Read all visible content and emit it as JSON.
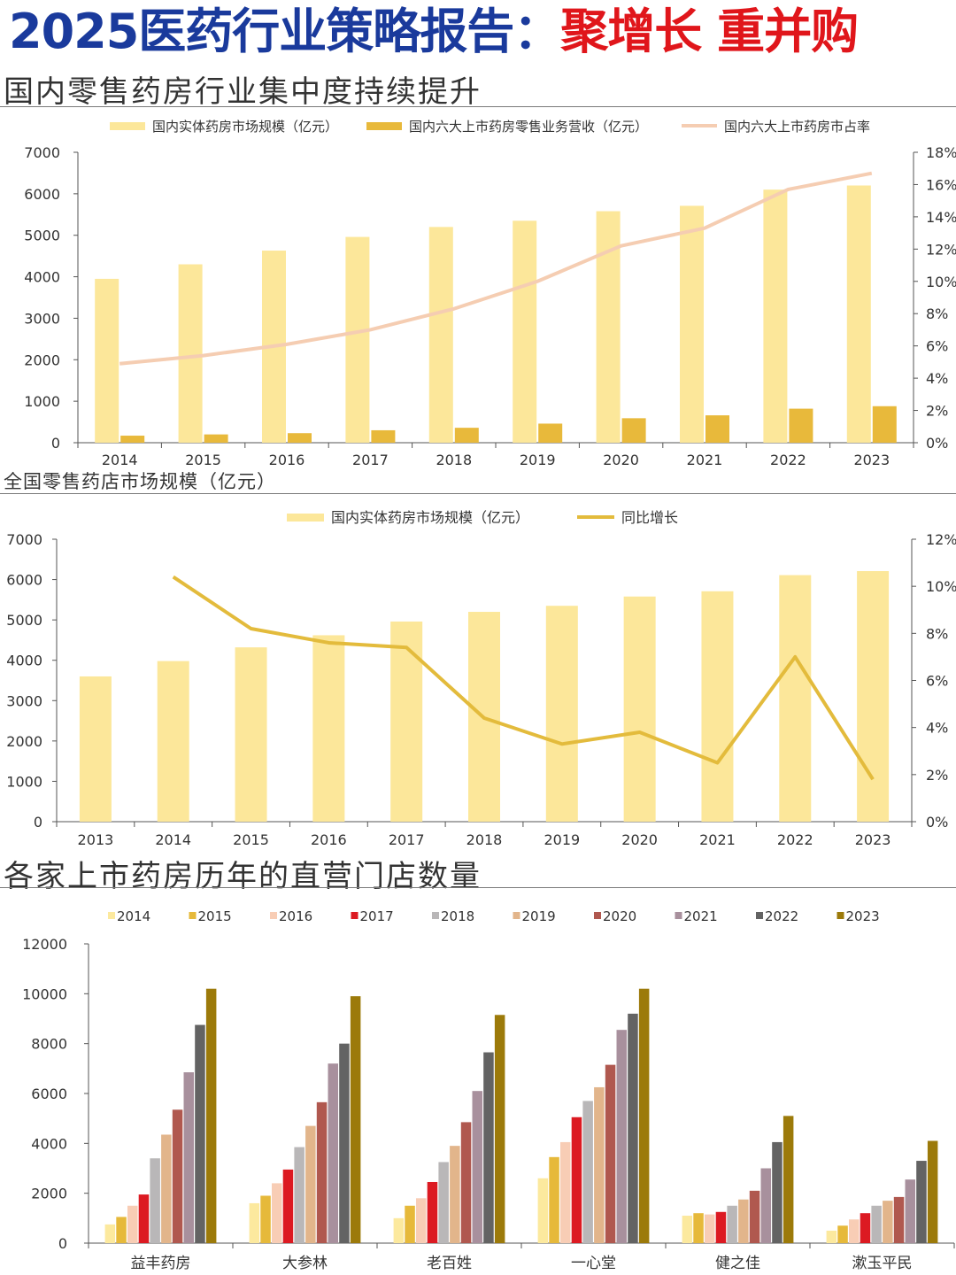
{
  "header": {
    "title_main": "2025医药行业策略报告：",
    "title_accent": "聚增长 重并购"
  },
  "sections": [
    {
      "heading": "国内零售药房行业集中度持续提升"
    },
    {
      "heading": "全国零售药店市场规模（亿元）"
    },
    {
      "heading": "各家上市药房历年的直营门店数量"
    }
  ],
  "colors": {
    "light_yellow": "#fce79a",
    "gold": "#e8b93b",
    "peach": "#f5cdb2",
    "line_gold": "#e3bb3c",
    "title_blue": "#1a3a9c",
    "title_red": "#e0161b"
  },
  "chart_data": [
    {
      "type": "bar",
      "categories": [
        "2014",
        "2015",
        "2016",
        "2017",
        "2018",
        "2019",
        "2020",
        "2021",
        "2022",
        "2023"
      ],
      "series": [
        {
          "name": "国内实体药房市场规模（亿元）",
          "kind": "bar",
          "axis": "left",
          "values": [
            3950,
            4300,
            4630,
            4960,
            5200,
            5350,
            5580,
            5710,
            6100,
            6200
          ]
        },
        {
          "name": "国内六大上市药房零售业务营收（亿元）",
          "kind": "bar",
          "axis": "left",
          "values": [
            170,
            200,
            230,
            300,
            360,
            460,
            590,
            660,
            820,
            880
          ]
        },
        {
          "name": "国内六大上市药房市占率",
          "kind": "line",
          "axis": "right",
          "values": [
            4.9,
            5.4,
            6.1,
            7.0,
            8.3,
            10.0,
            12.2,
            13.3,
            15.7,
            16.7
          ]
        }
      ],
      "yticks_left": [
        "0",
        "1000",
        "2000",
        "3000",
        "4000",
        "5000",
        "6000",
        "7000"
      ],
      "yticks_right": [
        "0%",
        "2%",
        "4%",
        "6%",
        "8%",
        "10%",
        "12%",
        "14%",
        "16%",
        "18%"
      ],
      "ylim": [
        0,
        7000
      ],
      "y2lim": [
        0,
        18
      ],
      "grid": false,
      "legend": "top"
    },
    {
      "type": "bar",
      "categories": [
        "2013",
        "2014",
        "2015",
        "2016",
        "2017",
        "2018",
        "2019",
        "2020",
        "2021",
        "2022",
        "2023"
      ],
      "series": [
        {
          "name": "国内实体药房市场规模（亿元）",
          "kind": "bar",
          "axis": "left",
          "values": [
            3600,
            3980,
            4320,
            4620,
            4960,
            5200,
            5350,
            5580,
            5710,
            6110,
            6210
          ]
        },
        {
          "name": "同比增长",
          "kind": "line",
          "axis": "right",
          "values": [
            null,
            10.4,
            8.2,
            7.6,
            7.4,
            4.4,
            3.3,
            3.8,
            2.5,
            7.0,
            1.8
          ]
        }
      ],
      "yticks_left": [
        "0",
        "1000",
        "2000",
        "3000",
        "4000",
        "5000",
        "6000",
        "7000"
      ],
      "yticks_right": [
        "0%",
        "2%",
        "4%",
        "6%",
        "8%",
        "10%",
        "12%"
      ],
      "ylim": [
        0,
        7000
      ],
      "y2lim": [
        0,
        12
      ],
      "grid": false,
      "legend": "top"
    },
    {
      "type": "bar",
      "categories": [
        "益丰药房",
        "大参林",
        "老百姓",
        "一心堂",
        "健之佳",
        "漱玉平民"
      ],
      "series": [
        {
          "name": "2014",
          "color": "#fce99e",
          "values": [
            750,
            1600,
            1000,
            2600,
            1100,
            500
          ]
        },
        {
          "name": "2015",
          "color": "#e6b93a",
          "values": [
            1050,
            1900,
            1500,
            3450,
            1200,
            700
          ]
        },
        {
          "name": "2016",
          "color": "#f8cdb5",
          "values": [
            1500,
            2400,
            1800,
            4050,
            1150,
            950
          ]
        },
        {
          "name": "2017",
          "color": "#dc1a22",
          "values": [
            1950,
            2950,
            2450,
            5050,
            1250,
            1200
          ]
        },
        {
          "name": "2018",
          "color": "#b9b7b8",
          "values": [
            3400,
            3850,
            3250,
            5700,
            1500,
            1500
          ]
        },
        {
          "name": "2019",
          "color": "#e2b58b",
          "values": [
            4350,
            4700,
            3900,
            6250,
            1750,
            1700
          ]
        },
        {
          "name": "2020",
          "color": "#b0584f",
          "values": [
            5350,
            5650,
            4850,
            7150,
            2100,
            1850
          ]
        },
        {
          "name": "2021",
          "color": "#a8909d",
          "values": [
            6850,
            7200,
            6100,
            8550,
            3000,
            2550
          ]
        },
        {
          "name": "2022",
          "color": "#636363",
          "values": [
            8750,
            8000,
            7650,
            9200,
            4050,
            3300
          ]
        },
        {
          "name": "2023",
          "color": "#9c7a0a",
          "values": [
            10200,
            9900,
            9150,
            10200,
            5100,
            4100
          ]
        }
      ],
      "yticks_left": [
        "0",
        "2000",
        "4000",
        "6000",
        "8000",
        "10000",
        "12000"
      ],
      "ylim": [
        0,
        12000
      ],
      "grid": false,
      "legend": "top"
    }
  ]
}
